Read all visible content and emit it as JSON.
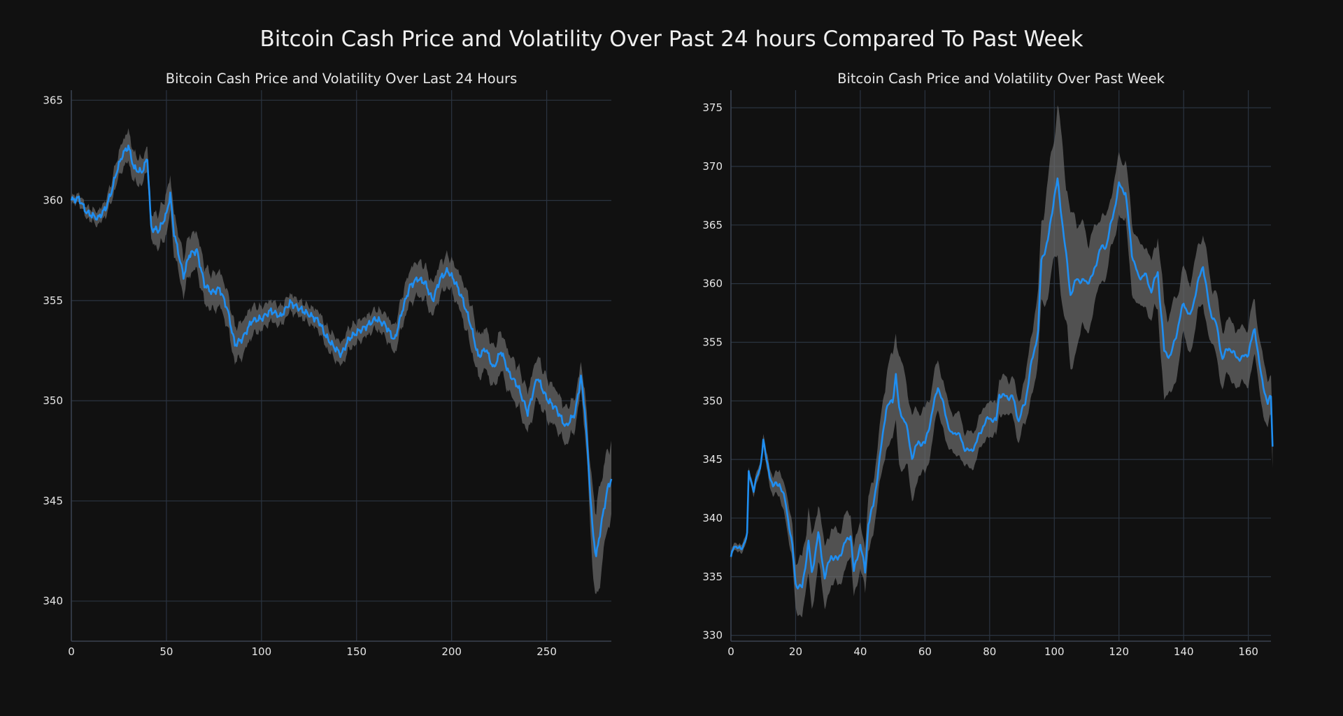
{
  "title": "Bitcoin Cash Price and Volatility Over Past 24 hours Compared To Past Week",
  "colors": {
    "background": "#111111",
    "line": "#1f8ef1",
    "band": "#6b6b6b",
    "grid": "#2b3441"
  },
  "chart_data": [
    {
      "type": "line",
      "title": "Bitcoin Cash Price and Volatility Over Last 24 Hours",
      "xlabel": "",
      "ylabel": "",
      "xlim": [
        0,
        284
      ],
      "ylim": [
        338,
        365.5
      ],
      "xticks": [
        0,
        50,
        100,
        150,
        200,
        250
      ],
      "yticks": [
        340,
        345,
        350,
        355,
        360,
        365
      ],
      "grid": true,
      "series": [
        {
          "name": "price",
          "keypoints": [
            [
              0,
              360
            ],
            [
              4,
              360.1
            ],
            [
              8,
              359.4
            ],
            [
              14,
              359.1
            ],
            [
              18,
              359.6
            ],
            [
              21,
              360.4
            ],
            [
              24,
              361.5
            ],
            [
              27,
              362.3
            ],
            [
              30,
              362.7
            ],
            [
              33,
              361.6
            ],
            [
              37,
              361.4
            ],
            [
              40,
              362.1
            ],
            [
              42,
              358.6
            ],
            [
              46,
              358.5
            ],
            [
              50,
              359.3
            ],
            [
              52,
              360.3
            ],
            [
              54,
              358.4
            ],
            [
              59,
              356.2
            ],
            [
              62,
              357.3
            ],
            [
              66,
              357.5
            ],
            [
              70,
              355.8
            ],
            [
              74,
              355.4
            ],
            [
              78,
              355.6
            ],
            [
              82,
              354.6
            ],
            [
              86,
              352.8
            ],
            [
              90,
              353.1
            ],
            [
              95,
              354.0
            ],
            [
              100,
              354.1
            ],
            [
              105,
              354.5
            ],
            [
              110,
              354.2
            ],
            [
              115,
              354.9
            ],
            [
              120,
              354.6
            ],
            [
              125,
              354.3
            ],
            [
              130,
              354.0
            ],
            [
              134,
              353.2
            ],
            [
              138,
              352.7
            ],
            [
              142,
              352.3
            ],
            [
              146,
              353.1
            ],
            [
              150,
              353.4
            ],
            [
              155,
              353.7
            ],
            [
              160,
              354.1
            ],
            [
              165,
              353.8
            ],
            [
              170,
              353.0
            ],
            [
              174,
              354.5
            ],
            [
              178,
              355.7
            ],
            [
              182,
              356.1
            ],
            [
              186,
              355.9
            ],
            [
              190,
              355.0
            ],
            [
              194,
              356.1
            ],
            [
              198,
              356.5
            ],
            [
              202,
              355.9
            ],
            [
              206,
              355.0
            ],
            [
              210,
              353.8
            ],
            [
              214,
              352.2
            ],
            [
              218,
              352.6
            ],
            [
              222,
              351.6
            ],
            [
              226,
              352.5
            ],
            [
              230,
              351.4
            ],
            [
              235,
              350.7
            ],
            [
              240,
              349.4
            ],
            [
              245,
              351.2
            ],
            [
              250,
              350.1
            ],
            [
              255,
              349.6
            ],
            [
              260,
              348.7
            ],
            [
              265,
              349.4
            ],
            [
              268,
              351.2
            ],
            [
              270,
              349.6
            ],
            [
              272,
              346.8
            ],
            [
              274,
              343.7
            ],
            [
              276,
              342.2
            ],
            [
              279,
              344.0
            ],
            [
              282,
              345.6
            ],
            [
              284,
              346.1
            ]
          ]
        },
        {
          "name": "volatility_band",
          "halfwidth": [
            [
              0,
              0.2
            ],
            [
              18,
              0.4
            ],
            [
              30,
              0.8
            ],
            [
              40,
              0.6
            ],
            [
              48,
              1.0
            ],
            [
              60,
              1.0
            ],
            [
              80,
              0.9
            ],
            [
              90,
              0.9
            ],
            [
              100,
              0.6
            ],
            [
              120,
              0.4
            ],
            [
              140,
              0.6
            ],
            [
              160,
              0.5
            ],
            [
              180,
              0.9
            ],
            [
              200,
              0.8
            ],
            [
              210,
              1.1
            ],
            [
              230,
              1.0
            ],
            [
              245,
              1.1
            ],
            [
              262,
              0.9
            ],
            [
              268,
              0.7
            ],
            [
              272,
              1.3
            ],
            [
              276,
              2.5
            ],
            [
              280,
              2.2
            ],
            [
              284,
              1.8
            ]
          ]
        }
      ]
    },
    {
      "type": "line",
      "title": "Bitcoin Cash Price and Volatility Over Past Week",
      "xlabel": "",
      "ylabel": "",
      "xlim": [
        0,
        167
      ],
      "ylim": [
        329.5,
        376.5
      ],
      "xticks": [
        0,
        20,
        40,
        60,
        80,
        100,
        120,
        140,
        160
      ],
      "yticks": [
        330,
        335,
        340,
        345,
        350,
        355,
        360,
        365,
        370,
        375
      ],
      "grid": true,
      "series": [
        {
          "name": "price",
          "keypoints": [
            [
              0,
              336.5
            ],
            [
              1,
              337.8
            ],
            [
              3,
              337.2
            ],
            [
              5,
              338.6
            ],
            [
              5.5,
              343.8
            ],
            [
              7,
              342.5
            ],
            [
              9,
              344.2
            ],
            [
              10,
              346.7
            ],
            [
              11,
              344.8
            ],
            [
              13,
              342.7
            ],
            [
              15,
              343.0
            ],
            [
              17,
              341.2
            ],
            [
              19,
              337.5
            ],
            [
              20,
              334.4
            ],
            [
              22,
              334.0
            ],
            [
              24,
              338.0
            ],
            [
              25,
              335.2
            ],
            [
              27,
              338.7
            ],
            [
              29,
              335.0
            ],
            [
              31,
              336.8
            ],
            [
              33,
              336.4
            ],
            [
              35,
              337.7
            ],
            [
              37,
              338.6
            ],
            [
              38,
              335.4
            ],
            [
              40,
              337.8
            ],
            [
              41.5,
              335.4
            ],
            [
              42.5,
              339.6
            ],
            [
              44,
              341.0
            ],
            [
              46,
              345.0
            ],
            [
              48,
              349.4
            ],
            [
              50,
              350.0
            ],
            [
              51,
              352.3
            ],
            [
              52,
              349.2
            ],
            [
              54,
              348.2
            ],
            [
              56,
              345.2
            ],
            [
              58,
              346.5
            ],
            [
              60,
              346.3
            ],
            [
              62,
              348.7
            ],
            [
              64,
              351.3
            ],
            [
              66,
              349.3
            ],
            [
              68,
              347.1
            ],
            [
              70,
              347.4
            ],
            [
              72,
              346.1
            ],
            [
              74,
              345.6
            ],
            [
              76,
              346.5
            ],
            [
              78,
              347.9
            ],
            [
              80,
              348.6
            ],
            [
              82,
              348.2
            ],
            [
              83,
              350.6
            ],
            [
              85,
              350.3
            ],
            [
              87,
              350.4
            ],
            [
              89,
              348.3
            ],
            [
              91,
              349.9
            ],
            [
              93,
              353.3
            ],
            [
              95,
              355.9
            ],
            [
              96,
              362.0
            ],
            [
              98,
              363.6
            ],
            [
              100,
              367.5
            ],
            [
              101,
              368.8
            ],
            [
              103,
              364.0
            ],
            [
              105,
              359.1
            ],
            [
              107,
              360.4
            ],
            [
              110,
              360.1
            ],
            [
              112,
              360.7
            ],
            [
              114,
              362.9
            ],
            [
              116,
              363.2
            ],
            [
              118,
              365.6
            ],
            [
              120,
              368.4
            ],
            [
              122,
              367.8
            ],
            [
              124,
              362.6
            ],
            [
              126,
              360.5
            ],
            [
              128,
              360.8
            ],
            [
              130,
              359.4
            ],
            [
              132,
              361.0
            ],
            [
              134,
              354.2
            ],
            [
              136,
              353.8
            ],
            [
              138,
              356.0
            ],
            [
              140,
              358.4
            ],
            [
              142,
              357.1
            ],
            [
              144,
              359.6
            ],
            [
              146,
              361.6
            ],
            [
              148,
              357.8
            ],
            [
              150,
              356.6
            ],
            [
              152,
              353.6
            ],
            [
              154,
              354.6
            ],
            [
              156,
              353.8
            ],
            [
              158,
              353.6
            ],
            [
              160,
              354.1
            ],
            [
              162,
              356.2
            ],
            [
              164,
              352.0
            ],
            [
              166,
              349.8
            ],
            [
              167,
              350.3
            ],
            [
              167.5,
              346.1
            ]
          ]
        },
        {
          "name": "volatility_band",
          "halfwidth": [
            [
              0,
              0.3
            ],
            [
              6,
              0.4
            ],
            [
              10,
              0.5
            ],
            [
              18,
              1.5
            ],
            [
              24,
              3.0
            ],
            [
              30,
              2.5
            ],
            [
              40,
              2.0
            ],
            [
              46,
              2.5
            ],
            [
              52,
              4.5
            ],
            [
              58,
              3.0
            ],
            [
              66,
              2.0
            ],
            [
              74,
              1.5
            ],
            [
              82,
              1.5
            ],
            [
              90,
              1.8
            ],
            [
              96,
              3.5
            ],
            [
              100,
              6.0
            ],
            [
              104,
              7.0
            ],
            [
              110,
              4.0
            ],
            [
              116,
              2.5
            ],
            [
              120,
              2.5
            ],
            [
              124,
              3.0
            ],
            [
              130,
              2.5
            ],
            [
              134,
              4.0
            ],
            [
              140,
              3.0
            ],
            [
              146,
              3.0
            ],
            [
              152,
              2.5
            ],
            [
              158,
              2.5
            ],
            [
              162,
              2.5
            ],
            [
              167,
              2.0
            ]
          ]
        }
      ]
    }
  ]
}
